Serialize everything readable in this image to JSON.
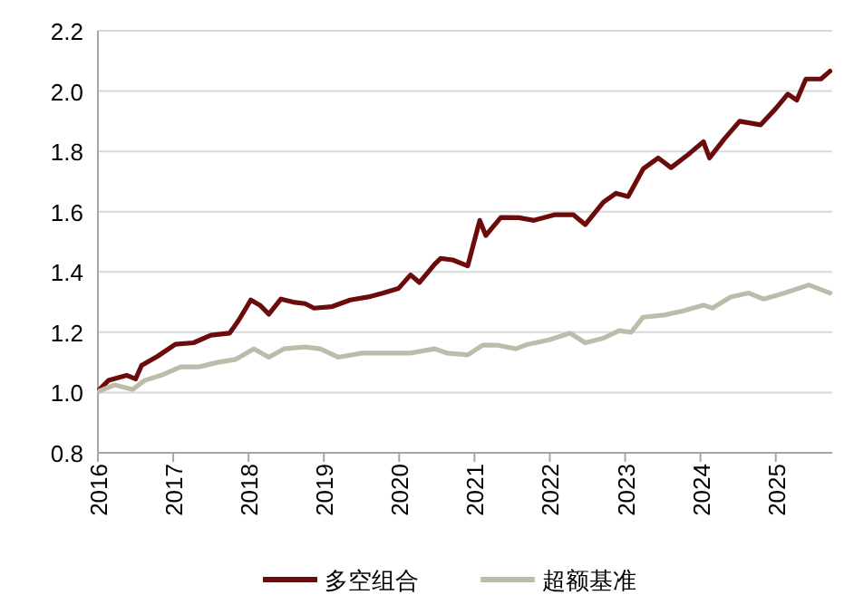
{
  "chart_data": {
    "type": "line",
    "xlim": [
      2016,
      2025.75
    ],
    "xticks": [
      2016,
      2017,
      2018,
      2019,
      2020,
      2021,
      2022,
      2023,
      2024,
      2025
    ],
    "ylim": [
      0.8,
      2.2
    ],
    "yticks": [
      {
        "value": 0.8,
        "label": "0.8"
      },
      {
        "value": 1.0,
        "label": "1.0"
      },
      {
        "value": 1.2,
        "label": "1.2"
      },
      {
        "value": 1.4,
        "label": "1.4"
      },
      {
        "value": 1.6,
        "label": "1.6"
      },
      {
        "value": 1.8,
        "label": "1.8"
      },
      {
        "value": 2.0,
        "label": "2.0"
      },
      {
        "value": 2.2,
        "label": "2.2"
      }
    ],
    "grid": "y",
    "legend": "bottom",
    "marker": "none",
    "line_style": "solid",
    "series": [
      {
        "name": "多空组合",
        "color": "#6b0b0b",
        "x": [
          2016.02,
          2016.14,
          2016.38,
          2016.5,
          2016.58,
          2016.79,
          2017.03,
          2017.27,
          2017.5,
          2017.75,
          2017.87,
          2018.03,
          2018.15,
          2018.27,
          2018.43,
          2018.59,
          2018.75,
          2018.87,
          2019.11,
          2019.35,
          2019.59,
          2019.79,
          2019.99,
          2020.15,
          2020.27,
          2020.47,
          2020.55,
          2020.71,
          2020.91,
          2021.07,
          2021.15,
          2021.35,
          2021.59,
          2021.79,
          2022.07,
          2022.31,
          2022.47,
          2022.71,
          2022.88,
          2023.04,
          2023.24,
          2023.44,
          2023.61,
          2023.84,
          2024.04,
          2024.12,
          2024.32,
          2024.52,
          2024.8,
          2025.0,
          2025.16,
          2025.28,
          2025.4,
          2025.6,
          2025.72
        ],
        "values": [
          1.01,
          1.04,
          1.057,
          1.045,
          1.09,
          1.12,
          1.16,
          1.165,
          1.19,
          1.197,
          1.24,
          1.307,
          1.29,
          1.26,
          1.31,
          1.3,
          1.295,
          1.28,
          1.285,
          1.307,
          1.317,
          1.33,
          1.345,
          1.39,
          1.365,
          1.425,
          1.445,
          1.44,
          1.42,
          1.571,
          1.521,
          1.581,
          1.58,
          1.571,
          1.59,
          1.59,
          1.557,
          1.631,
          1.661,
          1.65,
          1.742,
          1.778,
          1.746,
          1.79,
          1.832,
          1.778,
          1.842,
          1.9,
          1.888,
          1.942,
          1.99,
          1.97,
          2.04,
          2.04,
          2.066
        ]
      },
      {
        "name": "超额基准",
        "color": "#bdbcaa",
        "x": [
          2016.02,
          2016.22,
          2016.46,
          2016.62,
          2016.87,
          2017.1,
          2017.34,
          2017.59,
          2017.83,
          2018.07,
          2018.27,
          2018.47,
          2018.75,
          2018.95,
          2019.19,
          2019.51,
          2019.83,
          2020.15,
          2020.47,
          2020.63,
          2020.91,
          2021.11,
          2021.31,
          2021.55,
          2021.71,
          2021.99,
          2022.27,
          2022.47,
          2022.71,
          2022.92,
          2023.08,
          2023.24,
          2023.52,
          2023.76,
          2024.04,
          2024.16,
          2024.4,
          2024.64,
          2024.84,
          2025.12,
          2025.44,
          2025.72
        ],
        "values": [
          1.005,
          1.025,
          1.01,
          1.04,
          1.06,
          1.085,
          1.085,
          1.1,
          1.11,
          1.145,
          1.117,
          1.145,
          1.151,
          1.145,
          1.117,
          1.131,
          1.131,
          1.131,
          1.145,
          1.131,
          1.125,
          1.157,
          1.157,
          1.145,
          1.16,
          1.175,
          1.197,
          1.165,
          1.18,
          1.205,
          1.2,
          1.25,
          1.257,
          1.27,
          1.29,
          1.28,
          1.317,
          1.33,
          1.31,
          1.33,
          1.357,
          1.33
        ]
      }
    ]
  }
}
